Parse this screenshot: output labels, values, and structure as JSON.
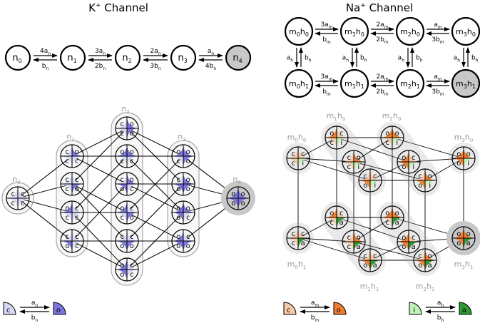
{
  "titles": {
    "k_channel": "K",
    "k_sup": "+",
    "k_suffix": " Channel",
    "na_channel": "Na",
    "na_sup": "+",
    "na_suffix": " Channel"
  },
  "k_chain": {
    "states": [
      {
        "name": "n",
        "sub": "0",
        "open": false
      },
      {
        "name": "n",
        "sub": "1",
        "open": false
      },
      {
        "name": "n",
        "sub": "2",
        "open": false
      },
      {
        "name": "n",
        "sub": "3",
        "open": false
      },
      {
        "name": "n",
        "sub": "4",
        "open": true
      }
    ],
    "forward_rates": [
      {
        "coef": "4a",
        "sub": "n"
      },
      {
        "coef": "3a",
        "sub": "n"
      },
      {
        "coef": "2a",
        "sub": "n"
      },
      {
        "coef": "a",
        "sub": "n"
      }
    ],
    "backward_rates": [
      {
        "coef": "b",
        "sub": "n"
      },
      {
        "coef": "2b",
        "sub": "n"
      },
      {
        "coef": "3b",
        "sub": "n"
      },
      {
        "coef": "4b",
        "sub": "n"
      }
    ]
  },
  "na_chain": {
    "top_states": [
      {
        "m": "0",
        "h": "0",
        "open": false
      },
      {
        "m": "1",
        "h": "0",
        "open": false
      },
      {
        "m": "2",
        "h": "0",
        "open": false
      },
      {
        "m": "3",
        "h": "0",
        "open": false
      }
    ],
    "bottom_states": [
      {
        "m": "0",
        "h": "1",
        "open": false
      },
      {
        "m": "1",
        "h": "1",
        "open": false
      },
      {
        "m": "2",
        "h": "1",
        "open": false
      },
      {
        "m": "3",
        "h": "1",
        "open": true
      }
    ],
    "forward_rates": [
      {
        "coef": "3a",
        "sub": "m"
      },
      {
        "coef": "2a",
        "sub": "m"
      },
      {
        "coef": "a",
        "sub": "m"
      }
    ],
    "backward_rates": [
      {
        "coef": "b",
        "sub": "m"
      },
      {
        "coef": "2b",
        "sub": "m"
      },
      {
        "coef": "3b",
        "sub": "m"
      }
    ],
    "vertical_down": {
      "coef": "a",
      "sub": "h"
    },
    "vertical_up": {
      "coef": "b",
      "sub": "h"
    }
  },
  "k_lattice": {
    "group_labels": [
      {
        "name": "n",
        "sub": "0"
      },
      {
        "name": "n",
        "sub": "1"
      },
      {
        "name": "n",
        "sub": "2"
      },
      {
        "name": "n",
        "sub": "3"
      },
      {
        "name": "n",
        "sub": "4"
      }
    ],
    "closed_letter": "c",
    "open_letter": "o"
  },
  "na_lattice": {
    "top_labels": [
      {
        "m": "0",
        "h": "0"
      },
      {
        "m": "1",
        "h": "0"
      },
      {
        "m": "2",
        "h": "0"
      },
      {
        "m": "3",
        "h": "0"
      }
    ],
    "bottom_labels": [
      {
        "m": "0",
        "h": "1"
      },
      {
        "m": "1",
        "h": "1"
      },
      {
        "m": "2",
        "h": "1"
      },
      {
        "m": "3",
        "h": "1"
      }
    ],
    "m_closed": "c",
    "m_open": "o",
    "h_inactive": "i",
    "h_active": "a"
  },
  "legend": {
    "k": {
      "left": "c",
      "right": "o",
      "fwd": {
        "coef": "a",
        "sub": "n"
      },
      "bwd": {
        "coef": "b",
        "sub": "n"
      }
    },
    "m": {
      "left": "c",
      "right": "o",
      "fwd": {
        "coef": "a",
        "sub": "m"
      },
      "bwd": {
        "coef": "b",
        "sub": "m"
      }
    },
    "h": {
      "left": "i",
      "right": "a",
      "fwd": {
        "coef": "a",
        "sub": "h"
      },
      "bwd": {
        "coef": "b",
        "sub": "h"
      }
    }
  },
  "colors": {
    "k_closed": "#d6d8f5",
    "k_open": "#7b74df",
    "m_closed": "#f8c9a9",
    "m_open": "#ef7d2e",
    "h_inactive": "#bff3b8",
    "h_active": "#2e9a32",
    "open_state_fill": "#c8c8c8",
    "group_fill": "#f2f2f2",
    "group_stroke": "#a9a9a9",
    "grey_text": "#9a9a9a"
  }
}
